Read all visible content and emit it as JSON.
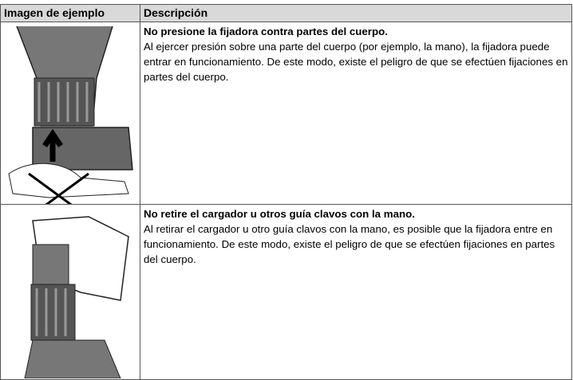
{
  "table": {
    "headers": [
      "Imagen de ejemplo",
      "Descripción"
    ],
    "rows": [
      {
        "title": "No presione la fijadora contra partes del cuerpo.",
        "text": "Al ejercer presión sobre una parte del cuerpo (por ejemplo, la mano), la fijadora puede entrar en funcionamiento. De este modo, existe el peligro de que se efectúen fijaciones en partes del cuerpo."
      },
      {
        "title": "No retire el cargador u otros guía clavos con la mano.",
        "text": "Al retirar el cargador u otro guía clavos con la mano, es posible que la fijadora entre en funcionamiento. De este modo, existe el peligro de que se efectúen fijaciones en partes del cuerpo."
      }
    ]
  }
}
